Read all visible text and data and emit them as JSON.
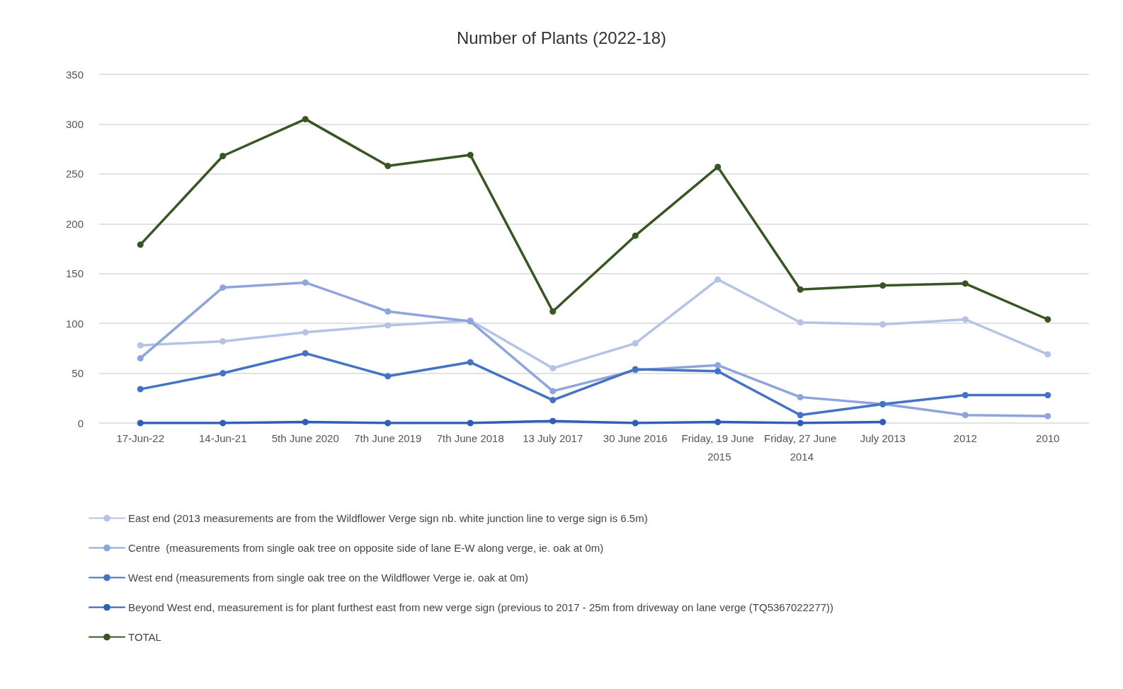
{
  "chart_data": {
    "type": "line",
    "title": "Number of Plants (2022-18)",
    "categories": [
      "17-Jun-22",
      "14-Jun-21",
      "5th June 2020",
      "7th June 2019",
      "7th June 2018",
      "13 July 2017",
      "30 June 2016",
      "Friday, 19 June 2015",
      "Friday, 27 June 2014",
      "July 2013",
      "2012",
      "2010"
    ],
    "series": [
      {
        "name": "East end (2013 measurements are from the Wildflower Verge sign nb. white junction line to verge sign is 6.5m)",
        "color": "#b4c3e6",
        "values": [
          78,
          82,
          91,
          98,
          103,
          55,
          80,
          144,
          101,
          99,
          104,
          69
        ]
      },
      {
        "name": "Centre  (measurements from single oak tree on opposite side of lane E-W along verge, ie. oak at 0m)",
        "color": "#8ea5dc",
        "values": [
          65,
          136,
          141,
          112,
          102,
          32,
          53,
          58,
          26,
          19,
          8,
          7
        ]
      },
      {
        "name": "West end (measurements from single oak tree on the Wildflower Verge ie. oak at 0m)",
        "color": "#4472c4",
        "values": [
          34,
          50,
          70,
          47,
          61,
          23,
          54,
          52,
          8,
          19,
          28,
          28
        ]
      },
      {
        "name": "Beyond West end, measurement is for plant furthest east from new verge sign (previous to 2017 - 25m from driveway on lane verge (TQ5367022277))",
        "color": "#2f5db8",
        "values": [
          0,
          0,
          1,
          0,
          0,
          2,
          0,
          1,
          0,
          1,
          null,
          null
        ]
      },
      {
        "name": "TOTAL",
        "color": "#375623",
        "values": [
          179,
          268,
          305,
          258,
          269,
          112,
          188,
          257,
          134,
          138,
          140,
          104
        ]
      }
    ],
    "ylim": [
      0,
      350
    ],
    "yticks": [
      0,
      50,
      100,
      150,
      200,
      250,
      300,
      350
    ],
    "grid": "y",
    "legend": "bottom",
    "marker": "circle",
    "line_style": "solid"
  }
}
